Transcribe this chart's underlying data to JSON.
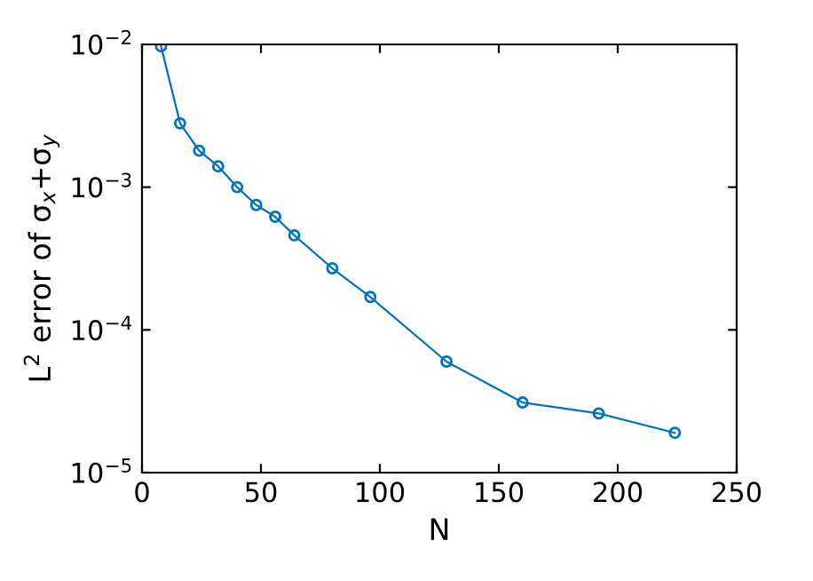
{
  "chart_data": {
    "type": "line",
    "xlabel": "N",
    "ylabel": "L$^{2}$ error of σ$_{x}$+σ$_{y}$",
    "log": "y",
    "marker": "circle",
    "line_style": "solid",
    "grid": false,
    "legend": false,
    "x": [
      8,
      16,
      24,
      32,
      40,
      48,
      56,
      64,
      80,
      96,
      128,
      160,
      192,
      224
    ],
    "series": [
      {
        "color": "#0072bd",
        "values": [
          0.0097,
          0.0028,
          0.0018,
          0.0014,
          0.001,
          0.00075,
          0.00062,
          0.00046,
          0.00027,
          0.00017,
          6e-05,
          3.1e-05,
          2.6e-05,
          1.9e-05
        ]
      }
    ],
    "xlim": [
      0,
      250
    ],
    "xticks": [
      0,
      50,
      100,
      150,
      200,
      250
    ],
    "ylim": [
      1e-05,
      0.01
    ],
    "yticks": [
      {
        "value": 1e-05,
        "label": "10$^{−5}$"
      },
      {
        "value": 0.0001,
        "label": "10$^{−4}$"
      },
      {
        "value": 0.001,
        "label": "10$^{−3}$"
      },
      {
        "value": 0.01,
        "label": "10$^{−2}$"
      }
    ]
  }
}
